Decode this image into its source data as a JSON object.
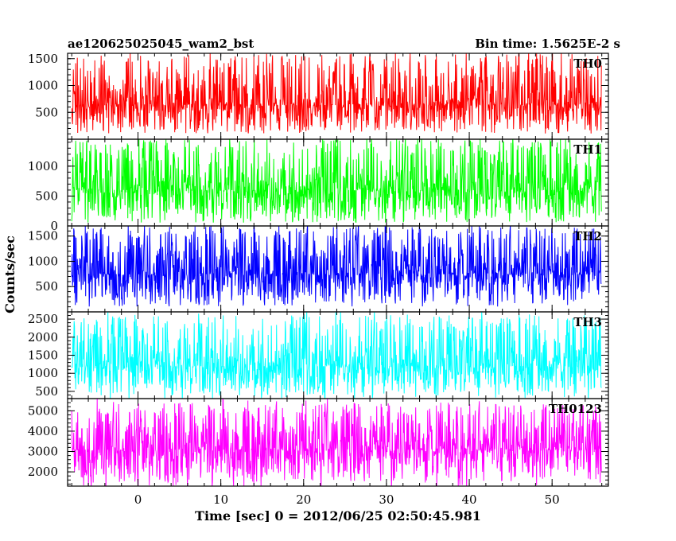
{
  "header": {
    "title": "ae120625025045_wam2_bst",
    "bin_time": "Bin time: 1.5625E-2 s"
  },
  "axes": {
    "xlabel": "Time [sec] 0 = 2012/06/25 02:50:45.981",
    "ylabel": "Counts/sec"
  },
  "chart_data": {
    "type": "line",
    "x_range": [
      -8.5,
      56.8
    ],
    "data_x_range": [
      -8.0,
      56.0
    ],
    "x_ticks": [
      0,
      10,
      20,
      30,
      40,
      50
    ],
    "bin_time_s": 0.015625,
    "panels": [
      {
        "name": "TH0",
        "color": "#ff0000",
        "ylim": [
          0,
          1600
        ],
        "y_ticks": [
          500,
          1000,
          1500
        ],
        "mean": 650,
        "low": 150,
        "high": 1600
      },
      {
        "name": "TH1",
        "color": "#00ff00",
        "ylim": [
          0,
          1450
        ],
        "y_ticks": [
          0,
          500,
          1000
        ],
        "mean": 600,
        "low": 80,
        "high": 1450
      },
      {
        "name": "TH2",
        "color": "#0000ff",
        "ylim": [
          0,
          1700
        ],
        "y_ticks": [
          500,
          1000,
          1500
        ],
        "mean": 750,
        "low": 150,
        "high": 1700
      },
      {
        "name": "TH3",
        "color": "#00ffff",
        "ylim": [
          300,
          2700
        ],
        "y_ticks": [
          500,
          1000,
          1500,
          2000,
          2500
        ],
        "mean": 1200,
        "low": 400,
        "high": 2600
      },
      {
        "name": "TH0123",
        "color": "#ff00ff",
        "ylim": [
          1300,
          5600
        ],
        "y_ticks": [
          2000,
          3000,
          4000,
          5000
        ],
        "mean": 3100,
        "low": 1500,
        "high": 5400
      }
    ]
  }
}
